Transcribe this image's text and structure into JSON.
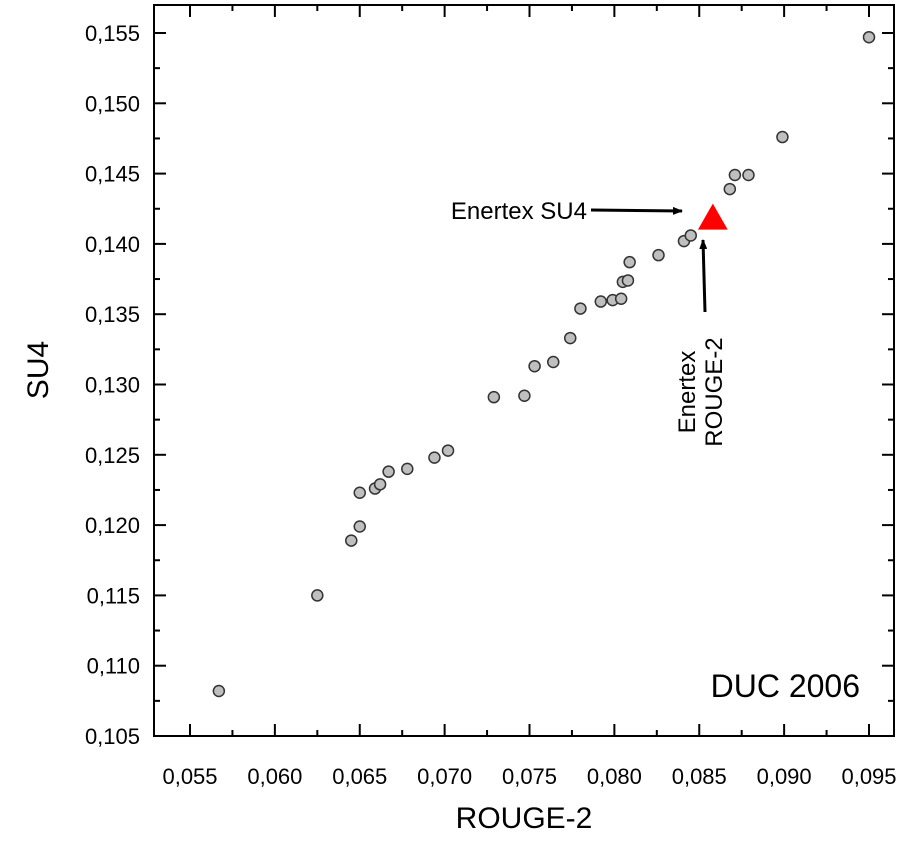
{
  "chart_data": {
    "type": "scatter",
    "title": "",
    "xlabel": "ROUGE-2",
    "ylabel": "SU4",
    "xlim": [
      0.0545,
      0.097
    ],
    "ylim": [
      0.105,
      0.157
    ],
    "xticks": [
      0.055,
      0.06,
      0.065,
      0.07,
      0.075,
      0.08,
      0.085,
      0.09,
      0.095
    ],
    "xtick_labels": [
      "0,055",
      "0,060",
      "0,065",
      "0,070",
      "0,075",
      "0,080",
      "0,085",
      "0,090",
      "0,095"
    ],
    "yticks": [
      0.105,
      0.11,
      0.115,
      0.12,
      0.125,
      0.13,
      0.135,
      0.14,
      0.145,
      0.15,
      0.155
    ],
    "ytick_labels": [
      "0,105",
      "0,110",
      "0,115",
      "0,120",
      "0,125",
      "0,130",
      "0,135",
      "0,140",
      "0,145",
      "0,150",
      "0,155"
    ],
    "grid": false,
    "inset_label": "DUC 2006",
    "series": [
      {
        "marker": "circle",
        "color": "#bfbfbf",
        "points": [
          [
            0.0567,
            0.1082
          ],
          [
            0.0625,
            0.115
          ],
          [
            0.0645,
            0.1189
          ],
          [
            0.065,
            0.1199
          ],
          [
            0.065,
            0.1223
          ],
          [
            0.0659,
            0.1226
          ],
          [
            0.0662,
            0.1229
          ],
          [
            0.0667,
            0.1238
          ],
          [
            0.0678,
            0.124
          ],
          [
            0.0694,
            0.1248
          ],
          [
            0.0702,
            0.1253
          ],
          [
            0.0729,
            0.1291
          ],
          [
            0.0747,
            0.1292
          ],
          [
            0.0753,
            0.1313
          ],
          [
            0.0764,
            0.1316
          ],
          [
            0.0774,
            0.1333
          ],
          [
            0.078,
            0.1354
          ],
          [
            0.0792,
            0.1359
          ],
          [
            0.0799,
            0.136
          ],
          [
            0.0804,
            0.1361
          ],
          [
            0.0805,
            0.1373
          ],
          [
            0.0808,
            0.1374
          ],
          [
            0.0809,
            0.1387
          ],
          [
            0.0826,
            0.1392
          ],
          [
            0.0841,
            0.1402
          ],
          [
            0.0845,
            0.1406
          ],
          [
            0.0868,
            0.1439
          ],
          [
            0.0871,
            0.1449
          ],
          [
            0.0879,
            0.1449
          ],
          [
            0.0899,
            0.1476
          ],
          [
            0.095,
            0.1547
          ]
        ]
      },
      {
        "name": "Enertex",
        "marker": "triangle",
        "color": "#ff0000",
        "points": [
          [
            0.0858,
            0.1418
          ]
        ]
      }
    ],
    "annotations": [
      {
        "text": "Enertex SU4",
        "lines": [
          "Enertex SU4"
        ]
      },
      {
        "text": "Enertex ROUGE-2",
        "lines": [
          "Enertex",
          "ROUGE-2"
        ]
      }
    ]
  }
}
